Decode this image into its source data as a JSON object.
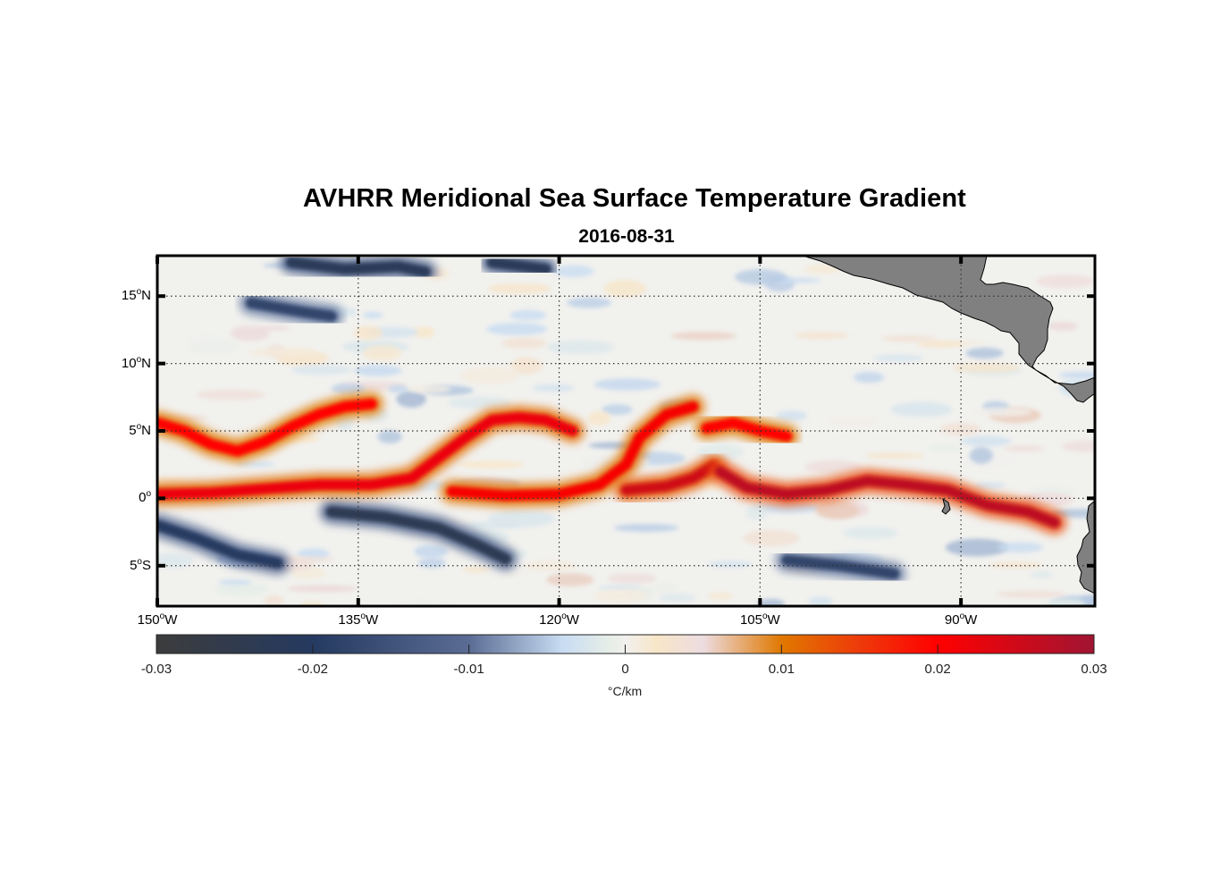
{
  "title": "AVHRR Meridional Sea Surface Temperature Gradient",
  "subtitle": "2016-08-31",
  "map": {
    "projection": "equirectangular",
    "lon_range": [
      -150,
      -80
    ],
    "lat_range": [
      -8,
      18
    ],
    "y_ticks": [
      {
        "value": 15,
        "num": "15",
        "hemi": "N"
      },
      {
        "value": 10,
        "num": "10",
        "hemi": "N"
      },
      {
        "value": 5,
        "num": "5",
        "hemi": "N"
      },
      {
        "value": 0,
        "num": "0",
        "hemi": ""
      },
      {
        "value": -5,
        "num": "5",
        "hemi": "S"
      }
    ],
    "x_ticks": [
      {
        "value": -150,
        "num": "150",
        "hemi": "W"
      },
      {
        "value": -135,
        "num": "135",
        "hemi": "W"
      },
      {
        "value": -120,
        "num": "120",
        "hemi": "W"
      },
      {
        "value": -105,
        "num": "105",
        "hemi": "W"
      },
      {
        "value": -90,
        "num": "90",
        "hemi": "W"
      }
    ],
    "degree_symbol": "o",
    "land_color": "#808080",
    "grid": "dotted"
  },
  "colorbar": {
    "label": "°C/km",
    "range": [
      -0.03,
      0.03
    ],
    "ticks": [
      "-0.03",
      "-0.02",
      "-0.01",
      "0",
      "0.01",
      "0.02",
      "0.03"
    ],
    "stops": [
      {
        "v": -0.03,
        "color": "#3c3c3c"
      },
      {
        "v": -0.02,
        "color": "#253a60"
      },
      {
        "v": -0.01,
        "color": "#5a6c94"
      },
      {
        "v": -0.004,
        "color": "#c8dcf2"
      },
      {
        "v": -0.001,
        "color": "#e6eee8"
      },
      {
        "v": 0.0,
        "color": "#f1f0ee"
      },
      {
        "v": 0.002,
        "color": "#f8e6c8"
      },
      {
        "v": 0.005,
        "color": "#ecdce0"
      },
      {
        "v": 0.01,
        "color": "#e07800"
      },
      {
        "v": 0.015,
        "color": "#ee3a0a"
      },
      {
        "v": 0.02,
        "color": "#ff0000"
      },
      {
        "v": 0.03,
        "color": "#a01432"
      }
    ]
  },
  "features": {
    "warm_fronts": [
      {
        "name": "equatorial-front-west",
        "points": [
          [
            -150,
            5.6
          ],
          [
            -148,
            5.0
          ],
          [
            -146,
            4.0
          ],
          [
            -144,
            3.5
          ],
          [
            -142,
            4.2
          ],
          [
            -140,
            5.3
          ],
          [
            -138,
            6.2
          ],
          [
            -136,
            6.8
          ],
          [
            -134,
            7.0
          ]
        ],
        "strength": 0.02
      },
      {
        "name": "equatorial-front-base",
        "points": [
          [
            -150,
            0.3
          ],
          [
            -146,
            0.4
          ],
          [
            -142,
            0.7
          ],
          [
            -138,
            1.0
          ],
          [
            -134,
            1.0
          ],
          [
            -131,
            1.5
          ],
          [
            -129,
            3.0
          ],
          [
            -127,
            4.5
          ],
          [
            -125,
            5.8
          ],
          [
            -123,
            6.0
          ],
          [
            -121,
            5.8
          ],
          [
            -119,
            5.0
          ]
        ],
        "strength": 0.022
      },
      {
        "name": "equatorial-front-mid",
        "points": [
          [
            -128,
            0.5
          ],
          [
            -124,
            0.2
          ],
          [
            -120,
            0.3
          ],
          [
            -117,
            1.0
          ],
          [
            -115,
            2.5
          ],
          [
            -114,
            4.5
          ],
          [
            -112,
            6.2
          ],
          [
            -110,
            6.8
          ]
        ],
        "strength": 0.021
      },
      {
        "name": "equatorial-front-east",
        "points": [
          [
            -115,
            0.6
          ],
          [
            -112,
            0.9
          ],
          [
            -110,
            1.5
          ],
          [
            -108.5,
            2.4
          ]
        ],
        "strength": 0.025
      },
      {
        "name": "equatorial-front-far-east",
        "points": [
          [
            -108,
            2.0
          ],
          [
            -106,
            0.8
          ],
          [
            -103,
            0.3
          ],
          [
            -100,
            0.6
          ],
          [
            -97,
            1.3
          ],
          [
            -94,
            1.0
          ],
          [
            -91,
            0.6
          ],
          [
            -88,
            -0.5
          ],
          [
            -85,
            -1.0
          ],
          [
            -83,
            -1.8
          ]
        ],
        "strength": 0.027
      },
      {
        "name": "north-branch",
        "points": [
          [
            -109,
            5.2
          ],
          [
            -107,
            5.6
          ],
          [
            -105,
            5.0
          ],
          [
            -103,
            4.6
          ]
        ],
        "strength": 0.02
      }
    ],
    "cold_fronts": [
      {
        "name": "south-cold-west",
        "points": [
          [
            -150,
            -2.0
          ],
          [
            -147,
            -3.0
          ],
          [
            -144,
            -4.2
          ],
          [
            -141,
            -4.8
          ]
        ],
        "strength": -0.02
      },
      {
        "name": "south-cold-mid",
        "points": [
          [
            -137,
            -1.0
          ],
          [
            -133,
            -1.4
          ],
          [
            -129,
            -2.2
          ],
          [
            -126,
            -3.5
          ],
          [
            -124,
            -4.5
          ]
        ],
        "strength": -0.024
      },
      {
        "name": "south-cold-east",
        "points": [
          [
            -103,
            -4.6
          ],
          [
            -99,
            -5.0
          ],
          [
            -95,
            -5.6
          ]
        ],
        "strength": -0.018
      },
      {
        "name": "north-cold-1",
        "points": [
          [
            -140,
            17.5
          ],
          [
            -136,
            17.0
          ],
          [
            -132,
            17.2
          ],
          [
            -130,
            16.8
          ]
        ],
        "strength": -0.022
      },
      {
        "name": "north-cold-2",
        "points": [
          [
            -125,
            17.5
          ],
          [
            -121,
            17.0
          ]
        ],
        "strength": -0.022
      },
      {
        "name": "north-cold-3",
        "points": [
          [
            -143,
            14.5
          ],
          [
            -139,
            13.8
          ],
          [
            -137,
            13.5
          ]
        ],
        "strength": -0.018
      }
    ]
  }
}
